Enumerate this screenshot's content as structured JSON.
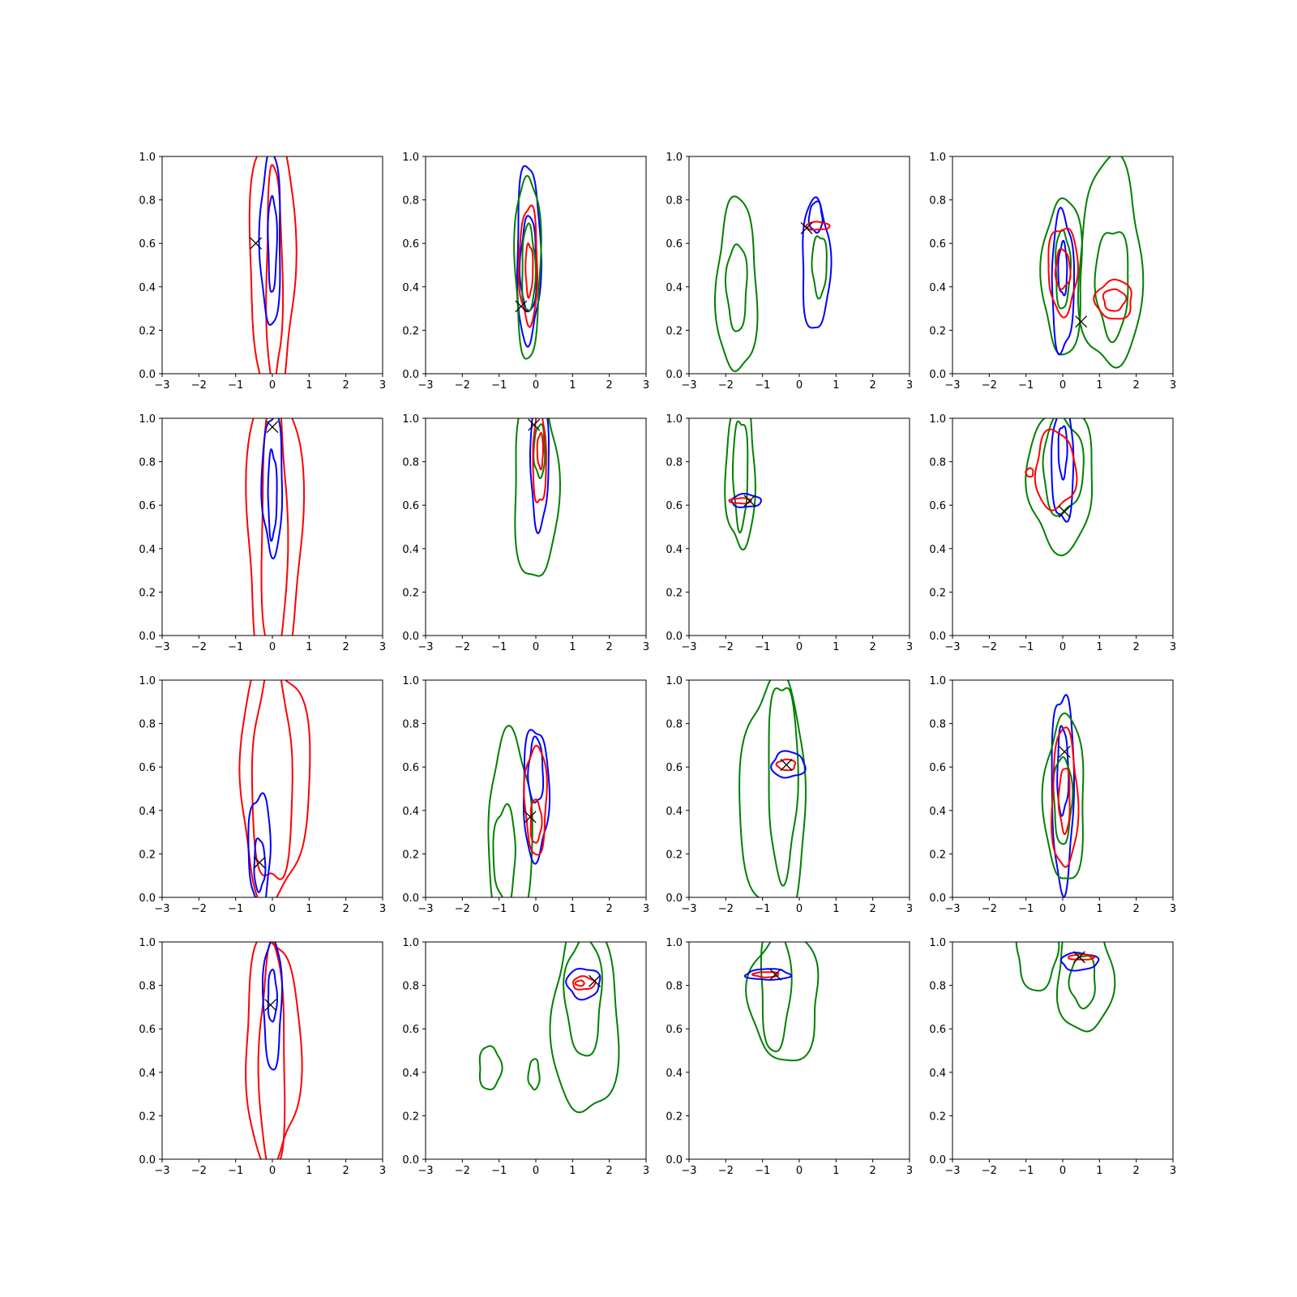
{
  "colors": {
    "blue": "#0000ff",
    "red": "#ff0000",
    "green": "#008000",
    "marker": "#000000"
  },
  "chart_data": {
    "type": "contour-grid",
    "rows": 4,
    "cols": 4,
    "xlim": [
      -3,
      3
    ],
    "ylim": [
      0,
      1
    ],
    "xticks": [
      "−3",
      "−2",
      "−1",
      "0",
      "1",
      "2",
      "3"
    ],
    "yticks": [
      "0.0",
      "0.2",
      "0.4",
      "0.6",
      "0.8",
      "1.0"
    ],
    "panels": [
      {
        "marker": [
          -0.45,
          0.6
        ],
        "contours": [
          {
            "color": "red",
            "cx": 0.0,
            "cy": 0.5,
            "rx": 0.62,
            "ry": 0.62
          },
          {
            "color": "red",
            "cx": 0.05,
            "cy": 0.45,
            "rx": 0.22,
            "ry": 0.5
          },
          {
            "color": "blue",
            "cx": -0.05,
            "cy": 0.62,
            "rx": 0.28,
            "ry": 0.4
          },
          {
            "color": "blue",
            "cx": 0.0,
            "cy": 0.6,
            "rx": 0.12,
            "ry": 0.22
          }
        ]
      },
      {
        "marker": [
          -0.4,
          0.31
        ],
        "contours": [
          {
            "color": "blue",
            "cx": -0.2,
            "cy": 0.55,
            "rx": 0.32,
            "ry": 0.41
          },
          {
            "color": "blue",
            "cx": -0.2,
            "cy": 0.5,
            "rx": 0.22,
            "ry": 0.22
          },
          {
            "color": "green",
            "cx": -0.22,
            "cy": 0.5,
            "rx": 0.35,
            "ry": 0.42
          },
          {
            "color": "green",
            "cx": -0.2,
            "cy": 0.48,
            "rx": 0.18,
            "ry": 0.2
          },
          {
            "color": "red",
            "cx": -0.2,
            "cy": 0.5,
            "rx": 0.25,
            "ry": 0.27
          },
          {
            "color": "red",
            "cx": -0.18,
            "cy": 0.48,
            "rx": 0.1,
            "ry": 0.12
          }
        ]
      },
      {
        "marker": [
          0.2,
          0.67
        ],
        "contours": [
          {
            "color": "green",
            "cx": -1.7,
            "cy": 0.4,
            "rx": 0.55,
            "ry": 0.4
          },
          {
            "color": "green",
            "cx": -1.7,
            "cy": 0.4,
            "rx": 0.28,
            "ry": 0.2
          },
          {
            "color": "blue",
            "cx": 0.45,
            "cy": 0.5,
            "rx": 0.38,
            "ry": 0.3
          },
          {
            "color": "blue",
            "cx": 0.45,
            "cy": 0.72,
            "rx": 0.18,
            "ry": 0.07
          },
          {
            "color": "green",
            "cx": 0.55,
            "cy": 0.5,
            "rx": 0.2,
            "ry": 0.14
          },
          {
            "color": "red",
            "cx": 0.5,
            "cy": 0.68,
            "rx": 0.32,
            "ry": 0.018
          }
        ]
      },
      {
        "marker": [
          0.5,
          0.24
        ],
        "contours": [
          {
            "color": "green",
            "cx": 0.0,
            "cy": 0.45,
            "rx": 0.55,
            "ry": 0.36
          },
          {
            "color": "green",
            "cx": 0.0,
            "cy": 0.48,
            "rx": 0.2,
            "ry": 0.18
          },
          {
            "color": "green",
            "cx": 1.3,
            "cy": 0.5,
            "rx": 0.85,
            "ry": 0.48
          },
          {
            "color": "green",
            "cx": 1.35,
            "cy": 0.42,
            "rx": 0.45,
            "ry": 0.25
          },
          {
            "color": "blue",
            "cx": 0.0,
            "cy": 0.42,
            "rx": 0.3,
            "ry": 0.32
          },
          {
            "color": "blue",
            "cx": 0.0,
            "cy": 0.48,
            "rx": 0.12,
            "ry": 0.12
          },
          {
            "color": "red",
            "cx": 0.0,
            "cy": 0.48,
            "rx": 0.4,
            "ry": 0.2
          },
          {
            "color": "red",
            "cx": 0.0,
            "cy": 0.48,
            "rx": 0.2,
            "ry": 0.09
          },
          {
            "color": "red",
            "cx": 1.4,
            "cy": 0.34,
            "rx": 0.5,
            "ry": 0.09
          },
          {
            "color": "red",
            "cx": 1.4,
            "cy": 0.34,
            "rx": 0.3,
            "ry": 0.05
          }
        ]
      },
      {
        "marker": [
          0.0,
          0.96
        ],
        "contours": [
          {
            "color": "red",
            "cx": 0.05,
            "cy": 0.5,
            "rx": 0.75,
            "ry": 0.7
          },
          {
            "color": "red",
            "cx": 0.05,
            "cy": 0.5,
            "rx": 0.35,
            "ry": 0.62
          },
          {
            "color": "blue",
            "cx": 0.0,
            "cy": 0.7,
            "rx": 0.28,
            "ry": 0.32
          },
          {
            "color": "blue",
            "cx": 0.0,
            "cy": 0.65,
            "rx": 0.12,
            "ry": 0.2
          }
        ]
      },
      {
        "marker": [
          -0.05,
          0.97
        ],
        "contours": [
          {
            "color": "green",
            "cx": 0.0,
            "cy": 0.7,
            "rx": 0.6,
            "ry": 0.45
          },
          {
            "color": "green",
            "cx": 0.1,
            "cy": 0.85,
            "rx": 0.15,
            "ry": 0.12
          },
          {
            "color": "blue",
            "cx": 0.1,
            "cy": 0.8,
            "rx": 0.25,
            "ry": 0.3
          },
          {
            "color": "red",
            "cx": 0.1,
            "cy": 0.82,
            "rx": 0.18,
            "ry": 0.22
          },
          {
            "color": "red",
            "cx": 0.12,
            "cy": 0.85,
            "rx": 0.08,
            "ry": 0.08
          }
        ]
      },
      {
        "marker": [
          -1.35,
          0.62
        ],
        "contours": [
          {
            "color": "green",
            "cx": -1.6,
            "cy": 0.75,
            "rx": 0.4,
            "ry": 0.35
          },
          {
            "color": "green",
            "cx": -1.6,
            "cy": 0.75,
            "rx": 0.2,
            "ry": 0.25
          },
          {
            "color": "blue",
            "cx": -1.45,
            "cy": 0.62,
            "rx": 0.4,
            "ry": 0.03
          },
          {
            "color": "red",
            "cx": -1.6,
            "cy": 0.62,
            "rx": 0.3,
            "ry": 0.012
          }
        ]
      },
      {
        "marker": [
          0.05,
          0.57
        ],
        "contours": [
          {
            "color": "green",
            "cx": -0.05,
            "cy": 0.72,
            "rx": 0.9,
            "ry": 0.32
          },
          {
            "color": "green",
            "cx": 0.0,
            "cy": 0.78,
            "rx": 0.55,
            "ry": 0.22
          },
          {
            "color": "blue",
            "cx": 0.0,
            "cy": 0.8,
            "rx": 0.3,
            "ry": 0.28
          },
          {
            "color": "blue",
            "cx": 0.0,
            "cy": 0.85,
            "rx": 0.12,
            "ry": 0.12
          },
          {
            "color": "red",
            "cx": -0.2,
            "cy": 0.76,
            "rx": 0.55,
            "ry": 0.18
          },
          {
            "color": "red",
            "cx": -0.9,
            "cy": 0.75,
            "rx": 0.1,
            "ry": 0.02
          }
        ]
      },
      {
        "marker": [
          -0.35,
          0.16
        ],
        "contours": [
          {
            "color": "red",
            "cx": 0.05,
            "cy": 0.55,
            "rx": 0.95,
            "ry": 0.55
          },
          {
            "color": "red",
            "cx": 0.0,
            "cy": 0.55,
            "rx": 0.55,
            "ry": 0.5
          },
          {
            "color": "blue",
            "cx": -0.35,
            "cy": 0.22,
            "rx": 0.3,
            "ry": 0.26
          },
          {
            "color": "blue",
            "cx": -0.35,
            "cy": 0.15,
            "rx": 0.15,
            "ry": 0.12
          }
        ]
      },
      {
        "marker": [
          -0.15,
          0.37
        ],
        "contours": [
          {
            "color": "green",
            "cx": -0.7,
            "cy": 0.3,
            "rx": 0.6,
            "ry": 0.44
          },
          {
            "color": "green",
            "cx": -0.85,
            "cy": 0.2,
            "rx": 0.3,
            "ry": 0.22
          },
          {
            "color": "blue",
            "cx": 0.0,
            "cy": 0.48,
            "rx": 0.35,
            "ry": 0.3
          },
          {
            "color": "blue",
            "cx": 0.0,
            "cy": 0.58,
            "rx": 0.2,
            "ry": 0.15
          },
          {
            "color": "red",
            "cx": 0.0,
            "cy": 0.45,
            "rx": 0.3,
            "ry": 0.25
          },
          {
            "color": "red",
            "cx": 0.0,
            "cy": 0.35,
            "rx": 0.15,
            "ry": 0.1
          }
        ]
      },
      {
        "marker": [
          -0.35,
          0.61
        ],
        "contours": [
          {
            "color": "green",
            "cx": -0.7,
            "cy": 0.45,
            "rx": 0.9,
            "ry": 0.55
          },
          {
            "color": "green",
            "cx": -0.45,
            "cy": 0.55,
            "rx": 0.4,
            "ry": 0.45
          },
          {
            "color": "blue",
            "cx": -0.3,
            "cy": 0.61,
            "rx": 0.45,
            "ry": 0.06
          },
          {
            "color": "red",
            "cx": -0.35,
            "cy": 0.61,
            "rx": 0.25,
            "ry": 0.025
          }
        ]
      },
      {
        "marker": [
          0.05,
          0.67
        ],
        "contours": [
          {
            "color": "blue",
            "cx": 0.0,
            "cy": 0.5,
            "rx": 0.3,
            "ry": 0.45
          },
          {
            "color": "blue",
            "cx": 0.0,
            "cy": 0.58,
            "rx": 0.15,
            "ry": 0.2
          },
          {
            "color": "green",
            "cx": 0.05,
            "cy": 0.45,
            "rx": 0.55,
            "ry": 0.38
          },
          {
            "color": "green",
            "cx": 0.0,
            "cy": 0.45,
            "rx": 0.25,
            "ry": 0.2
          },
          {
            "color": "red",
            "cx": 0.05,
            "cy": 0.45,
            "rx": 0.35,
            "ry": 0.32
          },
          {
            "color": "red",
            "cx": 0.05,
            "cy": 0.45,
            "rx": 0.15,
            "ry": 0.15
          }
        ]
      },
      {
        "marker": [
          -0.05,
          0.71
        ],
        "contours": [
          {
            "color": "red",
            "cx": 0.0,
            "cy": 0.5,
            "rx": 0.75,
            "ry": 0.52
          },
          {
            "color": "red",
            "cx": 0.0,
            "cy": 0.45,
            "rx": 0.35,
            "ry": 0.52
          },
          {
            "color": "blue",
            "cx": 0.0,
            "cy": 0.72,
            "rx": 0.25,
            "ry": 0.3
          },
          {
            "color": "blue",
            "cx": 0.0,
            "cy": 0.75,
            "rx": 0.12,
            "ry": 0.12
          }
        ]
      },
      {
        "marker": [
          1.6,
          0.82
        ],
        "contours": [
          {
            "color": "green",
            "cx": 1.35,
            "cy": 0.65,
            "rx": 0.9,
            "ry": 0.45
          },
          {
            "color": "green",
            "cx": 1.3,
            "cy": 0.75,
            "rx": 0.5,
            "ry": 0.27
          },
          {
            "color": "green",
            "cx": -1.25,
            "cy": 0.42,
            "rx": 0.3,
            "ry": 0.1
          },
          {
            "color": "green",
            "cx": -0.05,
            "cy": 0.39,
            "rx": 0.15,
            "ry": 0.07
          },
          {
            "color": "blue",
            "cx": 1.3,
            "cy": 0.81,
            "rx": 0.45,
            "ry": 0.07
          },
          {
            "color": "red",
            "cx": 1.3,
            "cy": 0.81,
            "rx": 0.3,
            "ry": 0.03
          },
          {
            "color": "red",
            "cx": 1.2,
            "cy": 0.81,
            "rx": 0.12,
            "ry": 0.012
          }
        ]
      },
      {
        "marker": [
          -0.65,
          0.85
        ],
        "contours": [
          {
            "color": "green",
            "cx": -0.4,
            "cy": 0.75,
            "rx": 0.95,
            "ry": 0.3
          },
          {
            "color": "green",
            "cx": -0.65,
            "cy": 0.8,
            "rx": 0.4,
            "ry": 0.3
          },
          {
            "color": "blue",
            "cx": -0.85,
            "cy": 0.85,
            "rx": 0.6,
            "ry": 0.025
          },
          {
            "color": "red",
            "cx": -0.9,
            "cy": 0.85,
            "rx": 0.35,
            "ry": 0.012
          }
        ]
      },
      {
        "marker": [
          0.45,
          0.93
        ],
        "contours": [
          {
            "color": "green",
            "cx": -0.7,
            "cy": 0.95,
            "rx": 0.55,
            "ry": 0.17
          },
          {
            "color": "green",
            "cx": 0.6,
            "cy": 0.85,
            "rx": 0.75,
            "ry": 0.27
          },
          {
            "color": "green",
            "cx": 0.55,
            "cy": 0.82,
            "rx": 0.35,
            "ry": 0.12
          },
          {
            "color": "blue",
            "cx": 0.45,
            "cy": 0.91,
            "rx": 0.5,
            "ry": 0.04
          },
          {
            "color": "red",
            "cx": 0.5,
            "cy": 0.93,
            "rx": 0.35,
            "ry": 0.012
          }
        ]
      }
    ]
  }
}
